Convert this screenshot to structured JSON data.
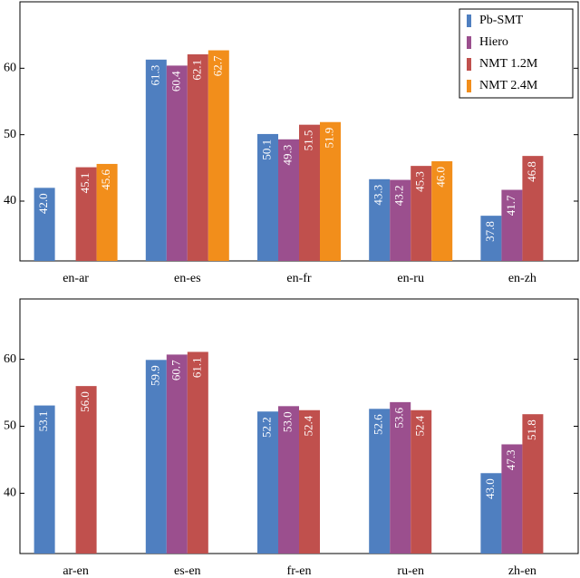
{
  "chart_data": [
    {
      "type": "bar",
      "categories": [
        "en-ar",
        "en-es",
        "en-fr",
        "en-ru",
        "en-zh"
      ],
      "series": [
        {
          "name": "Pb-SMT",
          "color": "#4f7fc0",
          "values": [
            42.0,
            61.3,
            50.1,
            43.3,
            37.8
          ],
          "value_labels": [
            "42.0",
            "61.3",
            "50.1",
            "43.3",
            "37.8"
          ]
        },
        {
          "name": "Hiero",
          "color": "#9b4f8e",
          "values": [
            null,
            60.4,
            49.3,
            43.2,
            41.7
          ],
          "value_labels": [
            null,
            "60.4",
            "49.3",
            "43.2",
            "41.7"
          ]
        },
        {
          "name": "NMT 1.2M",
          "color": "#c0504d",
          "values": [
            45.1,
            62.1,
            51.5,
            45.3,
            46.8
          ],
          "value_labels": [
            "45.1",
            "62.1",
            "51.5",
            "45.3",
            "46.8"
          ]
        },
        {
          "name": "NMT 2.4M",
          "color": "#f28e1b",
          "values": [
            45.6,
            62.7,
            51.9,
            46.0,
            null
          ],
          "value_labels": [
            "45.6",
            "62.7",
            "51.9",
            "46.0",
            null
          ]
        }
      ],
      "ylim": [
        31,
        70
      ],
      "yticks": [
        40,
        50,
        60
      ],
      "legend": "top-right"
    },
    {
      "type": "bar",
      "categories": [
        "ar-en",
        "es-en",
        "fr-en",
        "ru-en",
        "zh-en"
      ],
      "series": [
        {
          "color": "#4f7fc0",
          "values": [
            53.1,
            59.9,
            52.2,
            52.6,
            43.0
          ],
          "value_labels": [
            "53.1",
            "59.9",
            "52.2",
            "52.6",
            "43.0"
          ]
        },
        {
          "color": "#9b4f8e",
          "values": [
            null,
            60.7,
            53.0,
            53.6,
            47.3
          ],
          "value_labels": [
            null,
            "60.7",
            "53.0",
            "53.6",
            "47.3"
          ]
        },
        {
          "color": "#c0504d",
          "values": [
            56.0,
            61.1,
            52.4,
            52.4,
            51.8
          ],
          "value_labels": [
            "56.0",
            "61.1",
            "52.4",
            "52.4",
            "51.8"
          ]
        },
        {
          "color": "#f28e1b",
          "values": [
            null,
            null,
            null,
            null,
            null
          ],
          "value_labels": [
            null,
            null,
            null,
            null,
            null
          ]
        }
      ],
      "ylim": [
        31,
        69
      ],
      "yticks": [
        40,
        50,
        60
      ]
    }
  ]
}
